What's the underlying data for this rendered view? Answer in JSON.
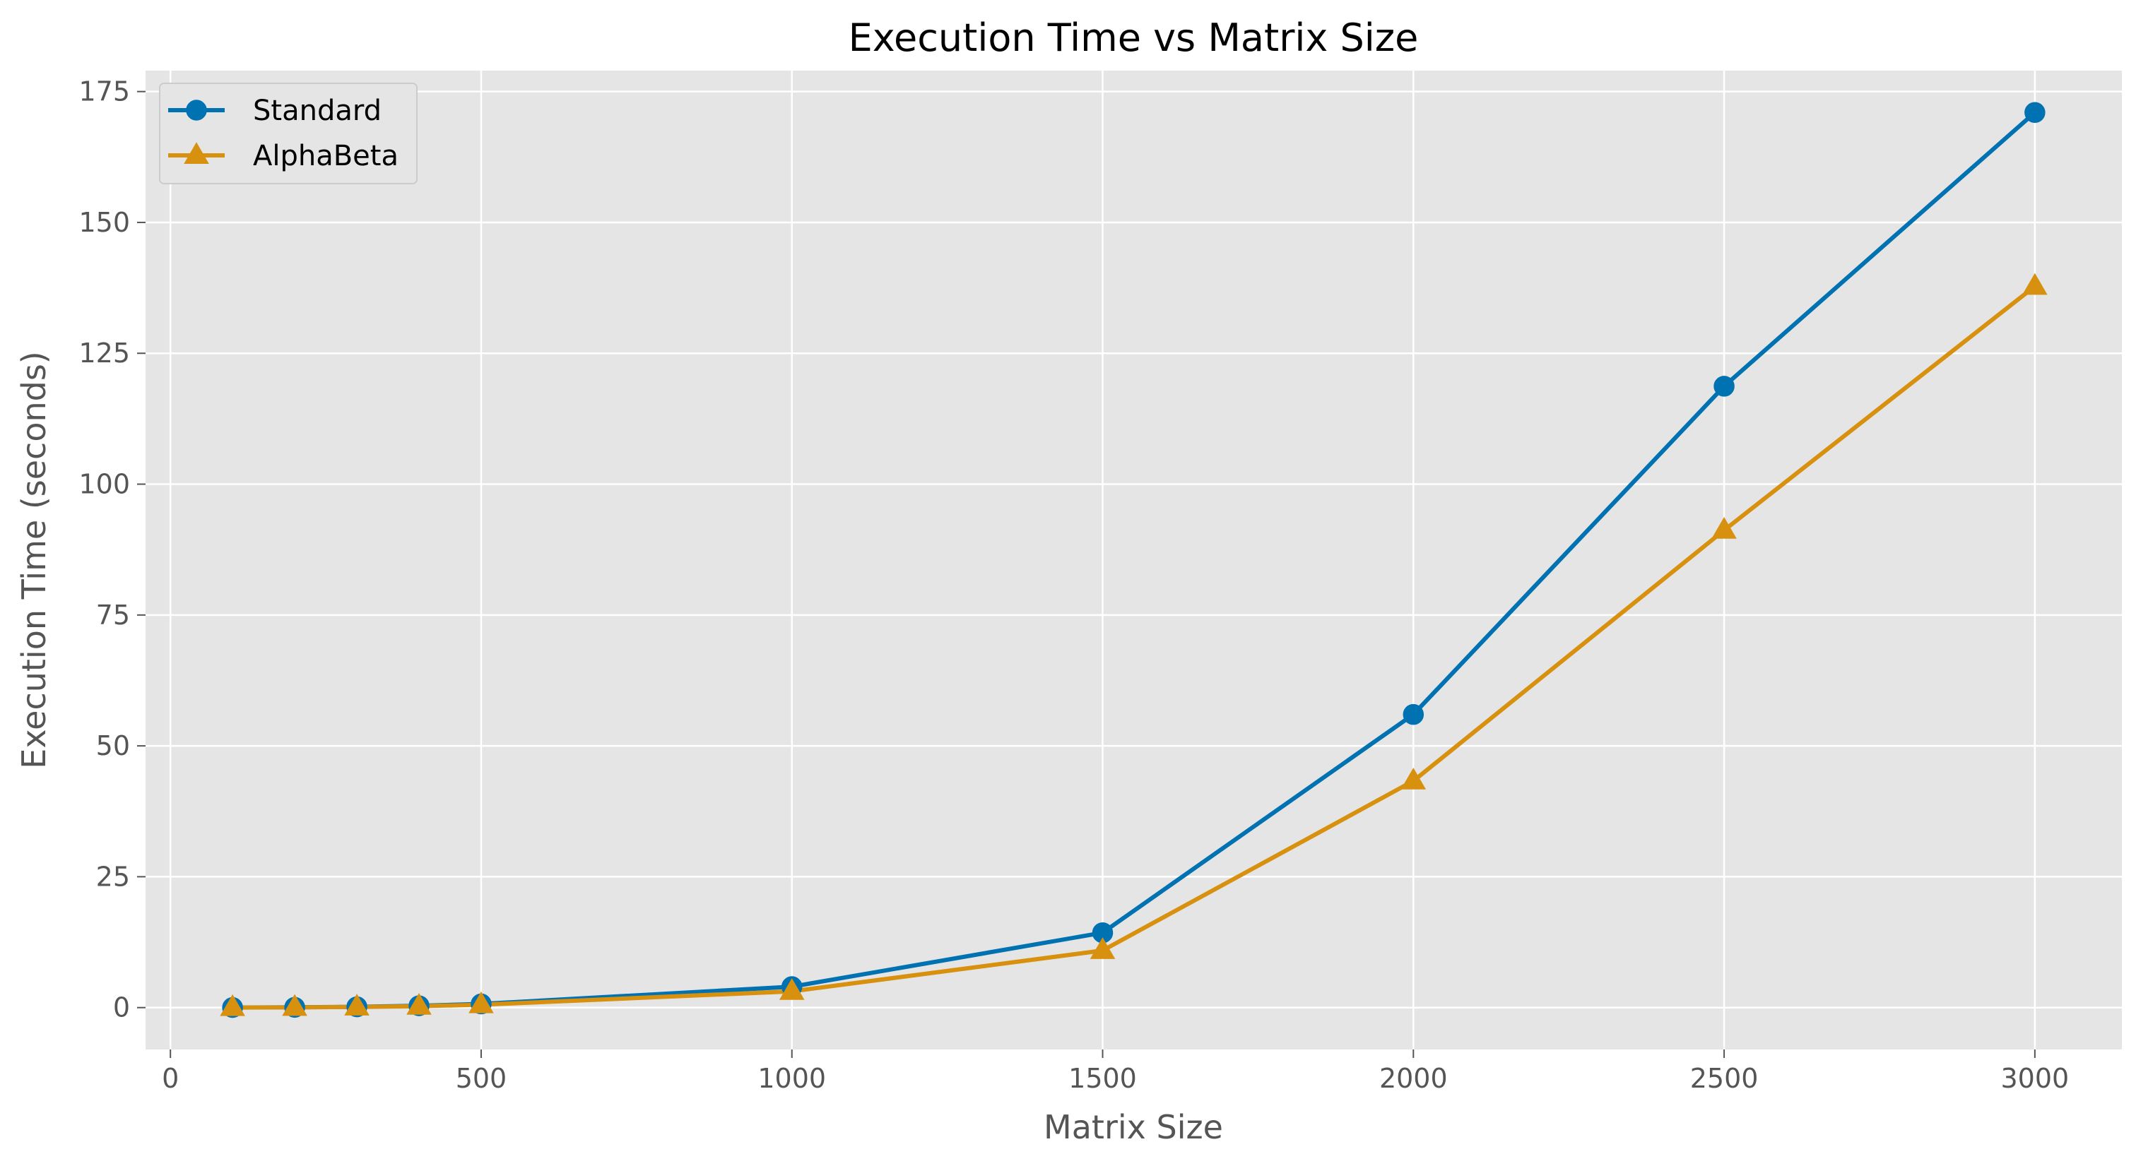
{
  "chart_data": {
    "type": "line",
    "title": "Execution Time vs Matrix Size",
    "xlabel": "Matrix Size",
    "ylabel": "Execution Time (seconds)",
    "xlim": [
      -40,
      3140
    ],
    "ylim": [
      -8,
      179
    ],
    "xticks": [
      0,
      500,
      1000,
      1500,
      2000,
      2500,
      3000
    ],
    "yticks": [
      0,
      25,
      50,
      75,
      100,
      125,
      150,
      175
    ],
    "grid": true,
    "legend_position": "top-left",
    "x": [
      100,
      200,
      300,
      400,
      500,
      1000,
      1500,
      2000,
      2500,
      3000
    ],
    "series": [
      {
        "name": "Standard",
        "marker": "circle",
        "color": "#0072b2",
        "values": [
          0.01,
          0.05,
          0.15,
          0.35,
          0.7,
          4.0,
          14.3,
          56.0,
          118.7,
          171.0
        ]
      },
      {
        "name": "AlphaBeta",
        "marker": "triangle",
        "color": "#d8900f",
        "values": [
          0.01,
          0.04,
          0.12,
          0.27,
          0.55,
          3.1,
          10.9,
          43.3,
          91.2,
          137.8
        ]
      }
    ],
    "colors": {
      "plot_background": "#e5e5e5",
      "grid": "#ffffff",
      "tick_text": "#555555"
    }
  }
}
